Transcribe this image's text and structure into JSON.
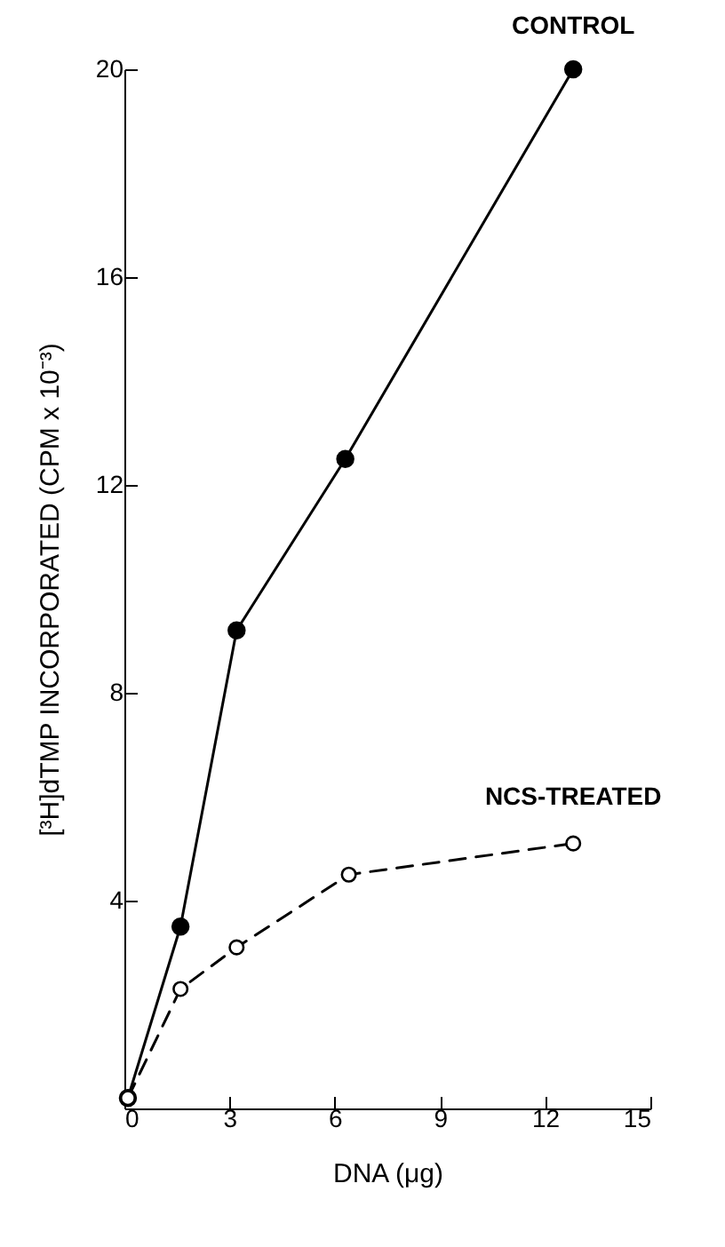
{
  "chart_data": {
    "type": "line",
    "xlabel": "DNA (μg)",
    "ylabel": "[³H]dTMP INCORPORATED (CPM x 10⁻³)",
    "xlim": [
      0,
      15
    ],
    "xticks": [
      0,
      3,
      6,
      9,
      12,
      15
    ],
    "ylim": [
      0,
      20
    ],
    "yticks": [
      4,
      8,
      12,
      16,
      20
    ],
    "grid": false,
    "marker": "circle",
    "series": [
      {
        "name": "CONTROL",
        "color": "#000000",
        "line_style": "solid",
        "x": [
          0.1,
          1.6,
          3.2,
          6.3,
          12.8
        ],
        "values": [
          0.2,
          3.5,
          9.2,
          12.5,
          20.0
        ]
      },
      {
        "name": "NCS-TREATED",
        "color": "#000000",
        "line_style": "dashed",
        "x": [
          0.1,
          1.6,
          3.2,
          6.4,
          12.8
        ],
        "values": [
          0.2,
          2.3,
          3.1,
          4.5,
          5.1
        ]
      }
    ]
  }
}
